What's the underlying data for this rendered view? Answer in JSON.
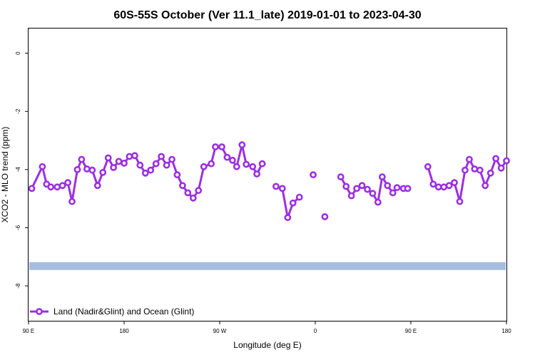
{
  "chart_data": {
    "type": "line",
    "title": "60S-55S October (Ver 11.1_late)   2019-01-01 to 2023-04-30",
    "xlabel": "Longitude (deg E)",
    "ylabel": "XCO2 - MLO trend (ppm)",
    "xlim": [
      90,
      540
    ],
    "ylim": [
      -9.2,
      0.85
    ],
    "x_ticks": [
      {
        "value": 90,
        "label": "90 E"
      },
      {
        "value": 180,
        "label": "180"
      },
      {
        "value": 270,
        "label": "90 W"
      },
      {
        "value": 360,
        "label": "0"
      },
      {
        "value": 450,
        "label": "90 E"
      },
      {
        "value": 540,
        "label": "180"
      }
    ],
    "y_ticks": [
      {
        "value": 0,
        "label": "0"
      },
      {
        "value": -2,
        "label": "-2"
      },
      {
        "value": -4,
        "label": "-4"
      },
      {
        "value": -6,
        "label": "-6"
      },
      {
        "value": -8,
        "label": "-8"
      }
    ],
    "band": {
      "y": -7.32,
      "color": "#a5bde0"
    },
    "legend_position": "bottom-left",
    "series": [
      {
        "name": "Land (Nadir&Glint) and Ocean (Glint)",
        "color": "#9b30e0",
        "segments": [
          [
            [
              93,
              -4.65
            ],
            [
              103,
              -3.9
            ],
            [
              107,
              -4.5
            ],
            [
              111,
              -4.6
            ],
            [
              117,
              -4.6
            ],
            [
              122,
              -4.55
            ],
            [
              127,
              -4.45
            ],
            [
              131,
              -5.1
            ],
            [
              136,
              -4.0
            ],
            [
              140,
              -3.65
            ],
            [
              145,
              -3.98
            ],
            [
              150,
              -4.02
            ],
            [
              155,
              -4.55
            ],
            [
              160,
              -4.1
            ],
            [
              165,
              -3.6
            ],
            [
              170,
              -3.93
            ],
            [
              175,
              -3.72
            ],
            [
              180,
              -3.78
            ],
            [
              185,
              -3.55
            ],
            [
              190,
              -3.52
            ],
            [
              195,
              -3.85
            ],
            [
              200,
              -4.12
            ],
            [
              205,
              -4.02
            ],
            [
              210,
              -3.8
            ],
            [
              215,
              -3.55
            ],
            [
              220,
              -3.85
            ],
            [
              225,
              -3.65
            ],
            [
              230,
              -4.18
            ],
            [
              235,
              -4.55
            ],
            [
              240,
              -4.8
            ],
            [
              245,
              -4.98
            ],
            [
              250,
              -4.72
            ],
            [
              255,
              -3.9
            ],
            [
              262,
              -3.8
            ],
            [
              266,
              -3.22
            ],
            [
              272,
              -3.22
            ],
            [
              277,
              -3.58
            ],
            [
              282,
              -3.68
            ],
            [
              286,
              -3.9
            ],
            [
              291,
              -3.15
            ],
            [
              295,
              -3.82
            ],
            [
              301,
              -3.9
            ],
            [
              305,
              -4.15
            ],
            [
              310,
              -3.8
            ]
          ],
          [
            [
              323,
              -4.58
            ],
            [
              329,
              -4.65
            ],
            [
              334,
              -5.65
            ],
            [
              339,
              -5.15
            ],
            [
              345,
              -4.95
            ]
          ],
          [
            [
              358,
              -4.18
            ]
          ],
          [
            [
              369,
              -5.62
            ]
          ],
          [
            [
              384,
              -4.25
            ],
            [
              389,
              -4.58
            ],
            [
              394,
              -4.9
            ],
            [
              399,
              -4.65
            ],
            [
              404,
              -4.55
            ],
            [
              409,
              -4.68
            ],
            [
              414,
              -4.82
            ],
            [
              419,
              -5.12
            ],
            [
              423,
              -4.25
            ],
            [
              428,
              -4.55
            ],
            [
              433,
              -4.8
            ],
            [
              437,
              -4.62
            ],
            [
              443,
              -4.65
            ],
            [
              447,
              -4.65
            ]
          ],
          [
            [
              466,
              -3.9
            ],
            [
              471,
              -4.5
            ],
            [
              476,
              -4.6
            ],
            [
              481,
              -4.6
            ],
            [
              486,
              -4.55
            ],
            [
              491,
              -4.45
            ],
            [
              496,
              -5.1
            ],
            [
              501,
              -4.02
            ],
            [
              505,
              -3.65
            ],
            [
              510,
              -3.98
            ],
            [
              515,
              -4.02
            ],
            [
              520,
              -4.55
            ],
            [
              525,
              -4.12
            ],
            [
              530,
              -3.62
            ],
            [
              535,
              -3.95
            ],
            [
              540,
              -3.7
            ]
          ]
        ]
      }
    ]
  }
}
